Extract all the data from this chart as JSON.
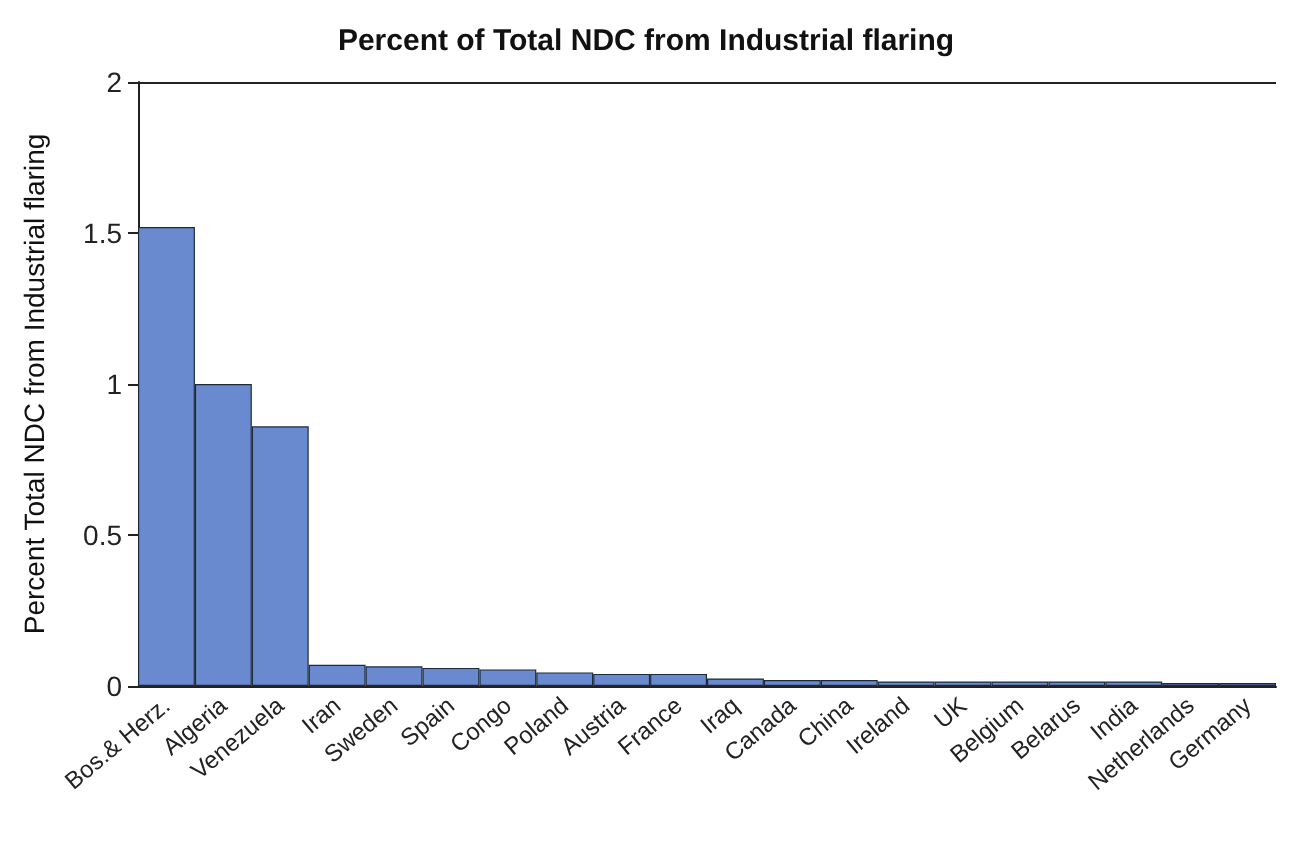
{
  "chart_data": {
    "type": "bar",
    "title": "Percent of Total NDC from Industrial flaring",
    "ylabel": "Percent Total NDC from Industrial flaring",
    "categories": [
      "Bos.& Herz.",
      "Algeria",
      "Venezuela",
      "Iran",
      "Sweden",
      "Spain",
      "Congo",
      "Poland",
      "Austria",
      "France",
      "Iraq",
      "Canada",
      "China",
      "Ireland",
      "UK",
      "Belgium",
      "Belarus",
      "India",
      "Netherlands",
      "Germany"
    ],
    "values": [
      1.52,
      1.0,
      0.86,
      0.07,
      0.065,
      0.06,
      0.055,
      0.045,
      0.04,
      0.04,
      0.025,
      0.02,
      0.02,
      0.015,
      0.015,
      0.015,
      0.015,
      0.015,
      0.01,
      0.01
    ],
    "color": "#6a8ad0",
    "ylim": [
      0,
      2
    ],
    "yticks": [
      0,
      0.5,
      1,
      1.5,
      2
    ]
  }
}
